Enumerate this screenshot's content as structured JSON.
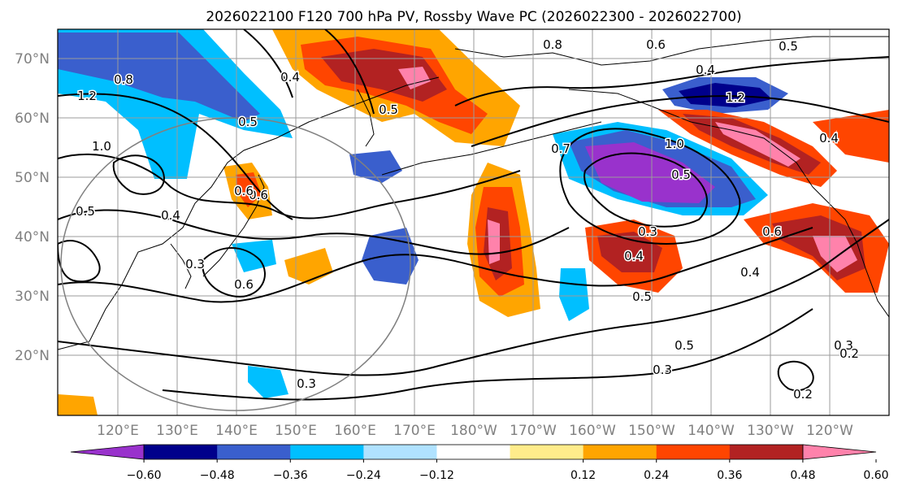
{
  "title": "2026022100 F120 700 hPa PV, Rossby Wave PC (2026022300 - 2026022700)",
  "lat_labels": [
    "70°N",
    "60°N",
    "50°N",
    "40°N",
    "30°N",
    "20°N"
  ],
  "lon_labels": [
    "120°E",
    "130°E",
    "140°E",
    "150°E",
    "160°E",
    "170°E",
    "180°W",
    "170°W",
    "160°W",
    "150°W",
    "140°W",
    "130°W",
    "120°W"
  ],
  "colorbar": {
    "ticks": [
      "−0.60",
      "−0.48",
      "−0.36",
      "−0.24",
      "−0.12",
      "0.12",
      "0.24",
      "0.36",
      "0.48",
      "0.60"
    ],
    "colors": [
      "#9932cc",
      "#00008b",
      "#3a5fcd",
      "#00bfff",
      "#b0e2ff",
      "#ffffff",
      "#ffec8b",
      "#ffa500",
      "#ff4500",
      "#b22222",
      "#ff82ab"
    ],
    "extend": "both"
  },
  "contour_labels": [
    "1.2",
    "0.8",
    "1.0",
    "0.5",
    "0.4",
    "0.5",
    "0.6",
    "0.4",
    "0.3",
    "0.6",
    "0.3",
    "0.5",
    "0.4",
    "0.6",
    "0.5",
    "0.8",
    "1.2",
    "0.5",
    "0.7",
    "1.0",
    "0.5",
    "0.4",
    "0.3",
    "0.5",
    "0.3",
    "0.2",
    "0.6",
    "0.4",
    "0.4",
    "0.3",
    "0.2",
    "0.6"
  ]
}
